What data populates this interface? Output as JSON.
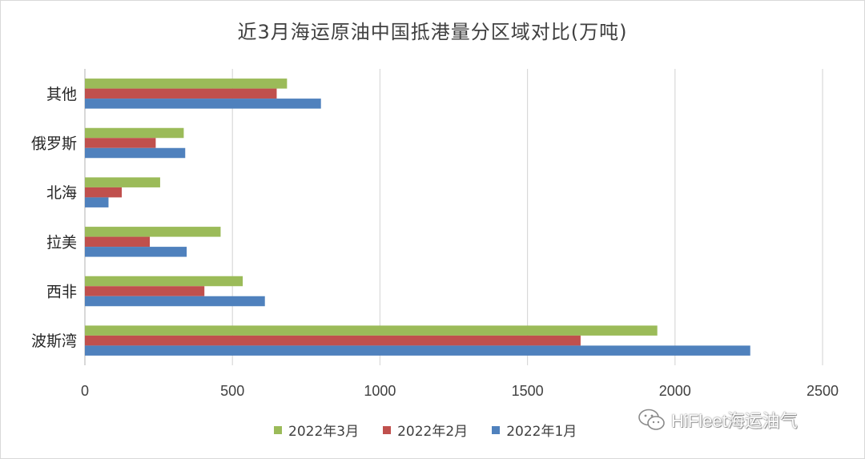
{
  "chart_data": {
    "type": "bar",
    "orientation": "horizontal",
    "title": "近3月海运原油中国抵港量分区域对比(万吨)",
    "categories": [
      "其他",
      "俄罗斯",
      "北海",
      "拉美",
      "西非",
      "波斯湾"
    ],
    "series": [
      {
        "name": "2022年3月",
        "color": "#9bbb59",
        "values": [
          685,
          335,
          255,
          460,
          535,
          1940
        ]
      },
      {
        "name": "2022年2月",
        "color": "#c0504d",
        "values": [
          650,
          240,
          125,
          220,
          405,
          1680
        ]
      },
      {
        "name": "2022年1月",
        "color": "#4f81bd",
        "values": [
          800,
          340,
          80,
          345,
          610,
          2255
        ]
      }
    ],
    "xlim": [
      0,
      2500
    ],
    "xticks": [
      0,
      500,
      1000,
      1500,
      2000,
      2500
    ],
    "grid": true,
    "legend_position": "bottom"
  },
  "watermark": {
    "text": "HiFleet海运油气",
    "icon": "wechat-icon"
  }
}
